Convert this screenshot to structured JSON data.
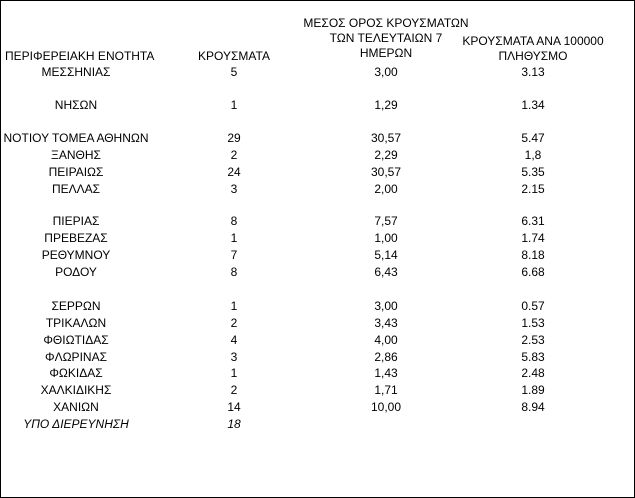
{
  "headers": {
    "region": "ΠΕΡΙΦΕΡΕΙΑΚΗ ΕΝΟΤΗΤΑ",
    "cases": "ΚΡΟΥΣΜΑΤΑ",
    "avg_line1": "ΜΕΣΟΣ ΟΡΟΣ ΚΡΟΥΣΜΑΤΩΝ",
    "avg_line2": "ΤΩΝ ΤΕΛΕΥΤΑΙΩΝ 7",
    "avg_line3": "ΗΜΕΡΩΝ",
    "per_line1": "ΚΡΟΥΣΜΑΤΑ ΑΝΑ 100000",
    "per_line2": "ΠΛΗΘΥΣΜΟ"
  },
  "rows": [
    {
      "region": "ΜΕΣΣΗΝΙΑΣ",
      "cases": "5",
      "avg": "3,00",
      "per": "3.13"
    },
    {
      "region": "ΝΗΣΩΝ",
      "cases": "1",
      "avg": "1,29",
      "per": "1.34"
    },
    {
      "region": "ΝΟΤΙΟΥ ΤΟΜΕΑ ΑΘΗΝΩΝ",
      "cases": "29",
      "avg": "30,57",
      "per": "5.47"
    },
    {
      "region": "ΞΑΝΘΗΣ",
      "cases": "2",
      "avg": "2,29",
      "per": "1,8"
    },
    {
      "region": "ΠΕΙΡΑΙΩΣ",
      "cases": "24",
      "avg": "30,57",
      "per": "5.35"
    },
    {
      "region": "ΠΕΛΛΑΣ",
      "cases": "3",
      "avg": "2,00",
      "per": "2.15"
    },
    {
      "region": "ΠΙΕΡΙΑΣ",
      "cases": "8",
      "avg": "7,57",
      "per": "6.31"
    },
    {
      "region": "ΠΡΕΒΕΖΑΣ",
      "cases": "1",
      "avg": "1,00",
      "per": "1.74"
    },
    {
      "region": "ΡΕΘΥΜΝΟΥ",
      "cases": "7",
      "avg": "5,14",
      "per": "8.18"
    },
    {
      "region": "ΡΟΔΟΥ",
      "cases": "8",
      "avg": "6,43",
      "per": "6.68"
    },
    {
      "region": "ΣΕΡΡΩΝ",
      "cases": "1",
      "avg": "3,00",
      "per": "0.57"
    },
    {
      "region": "ΤΡΙΚΑΛΩΝ",
      "cases": "2",
      "avg": "3,43",
      "per": "1.53"
    },
    {
      "region": "ΦΘΙΩΤΙΔΑΣ",
      "cases": "4",
      "avg": "4,00",
      "per": "2.53"
    },
    {
      "region": "ΦΛΩΡΙΝΑΣ",
      "cases": "3",
      "avg": "2,86",
      "per": "5.83"
    },
    {
      "region": "ΦΩΚΙΔΑΣ",
      "cases": "1",
      "avg": "1,43",
      "per": "2.48"
    },
    {
      "region": "ΧΑΛΚΙΔΙΚΗΣ",
      "cases": "2",
      "avg": "1,71",
      "per": "1.89"
    },
    {
      "region": "ΧΑΝΙΩΝ",
      "cases": "14",
      "avg": "10,00",
      "per": "8.94"
    }
  ],
  "footer": {
    "region": "ΥΠΟ ΔΙΕΡΕΥΝΗΣΗ",
    "cases": "18"
  }
}
